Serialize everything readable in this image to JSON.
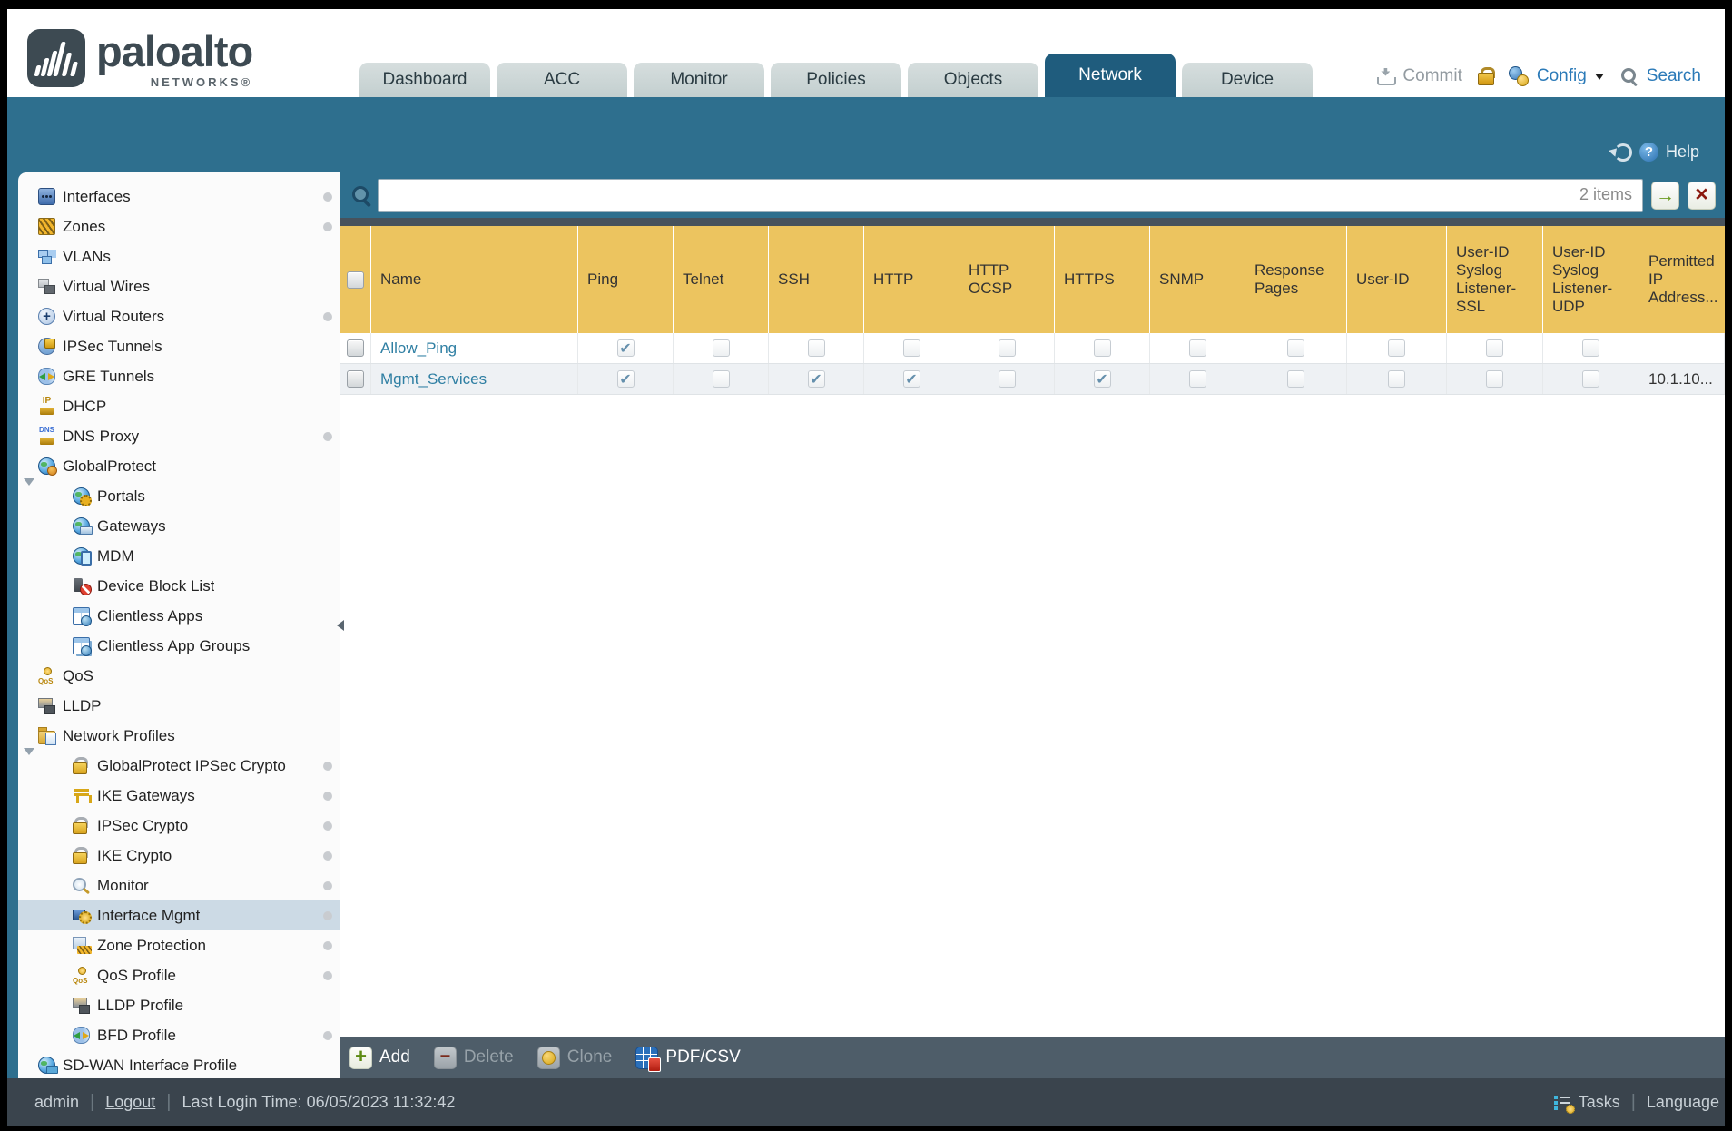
{
  "colors": {
    "band_blue": "#2e6f8e",
    "active_tab": "#1f5c7d",
    "table_header_yellow": "#ecc45f",
    "row_link": "#2f7fa3",
    "selected_item": "#ccdae5",
    "toolbar_bg": "#4e5d69",
    "footer_bg": "#3a444d"
  },
  "header": {
    "brand": "paloalto",
    "brand_sub": "NETWORKS®",
    "tabs": [
      {
        "label": "Dashboard"
      },
      {
        "label": "ACC"
      },
      {
        "label": "Monitor"
      },
      {
        "label": "Policies"
      },
      {
        "label": "Objects"
      },
      {
        "label": "Network",
        "active": true
      },
      {
        "label": "Device"
      }
    ],
    "commit_label": "Commit",
    "config_label": "Config",
    "search_label": "Search"
  },
  "band": {
    "help_label": "Help"
  },
  "sidebar": {
    "items": [
      {
        "label": "Interfaces",
        "level": 0,
        "icon": "interfaces",
        "dot": true
      },
      {
        "label": "Zones",
        "level": 0,
        "icon": "zones",
        "dot": true
      },
      {
        "label": "VLANs",
        "level": 0,
        "icon": "vlans"
      },
      {
        "label": "Virtual Wires",
        "level": 0,
        "icon": "virtual-wires"
      },
      {
        "label": "Virtual Routers",
        "level": 0,
        "icon": "virtual-routers",
        "dot": true
      },
      {
        "label": "IPSec Tunnels",
        "level": 0,
        "icon": "ipsec-tunnels"
      },
      {
        "label": "GRE Tunnels",
        "level": 0,
        "icon": "gre-tunnels"
      },
      {
        "label": "DHCP",
        "level": 0,
        "icon": "dhcp"
      },
      {
        "label": "DNS Proxy",
        "level": 0,
        "icon": "dns-proxy",
        "dot": true
      },
      {
        "label": "GlobalProtect",
        "level": 0,
        "icon": "globalprotect",
        "expander": true
      },
      {
        "label": "Portals",
        "level": 1,
        "icon": "portals"
      },
      {
        "label": "Gateways",
        "level": 1,
        "icon": "gateways"
      },
      {
        "label": "MDM",
        "level": 1,
        "icon": "mdm"
      },
      {
        "label": "Device Block List",
        "level": 1,
        "icon": "device-block-list"
      },
      {
        "label": "Clientless Apps",
        "level": 1,
        "icon": "clientless-apps"
      },
      {
        "label": "Clientless App Groups",
        "level": 1,
        "icon": "clientless-app-groups"
      },
      {
        "label": "QoS",
        "level": 0,
        "icon": "qos"
      },
      {
        "label": "LLDP",
        "level": 0,
        "icon": "lldp"
      },
      {
        "label": "Network Profiles",
        "level": 0,
        "icon": "network-profiles",
        "expander": true
      },
      {
        "label": "GlobalProtect IPSec Crypto",
        "level": 1,
        "icon": "lock",
        "dot": true
      },
      {
        "label": "IKE Gateways",
        "level": 1,
        "icon": "ike-gateways",
        "dot": true
      },
      {
        "label": "IPSec Crypto",
        "level": 1,
        "icon": "lock",
        "dot": true
      },
      {
        "label": "IKE Crypto",
        "level": 1,
        "icon": "lock",
        "dot": true
      },
      {
        "label": "Monitor",
        "level": 1,
        "icon": "monitor",
        "dot": true
      },
      {
        "label": "Interface Mgmt",
        "level": 1,
        "icon": "interface-mgmt",
        "selected": true,
        "dot": true
      },
      {
        "label": "Zone Protection",
        "level": 1,
        "icon": "zone-protection",
        "dot": true
      },
      {
        "label": "QoS Profile",
        "level": 1,
        "icon": "qos",
        "dot": true
      },
      {
        "label": "LLDP Profile",
        "level": 1,
        "icon": "lldp"
      },
      {
        "label": "BFD Profile",
        "level": 1,
        "icon": "bfd",
        "dot": true
      },
      {
        "label": "SD-WAN Interface Profile",
        "level": 0,
        "icon": "sd-wan"
      }
    ]
  },
  "content": {
    "filter": {
      "value": "",
      "count": "2 items"
    },
    "table": {
      "columns": [
        "Name",
        "Ping",
        "Telnet",
        "SSH",
        "HTTP",
        "HTTP OCSP",
        "HTTPS",
        "SNMP",
        "Response Pages",
        "User-ID",
        "User-ID Syslog Listener-SSL",
        "User-ID Syslog Listener-UDP",
        "Permitted IP Address..."
      ],
      "rows": [
        {
          "name": "Allow_Ping",
          "checks": [
            true,
            false,
            false,
            false,
            false,
            false,
            false,
            false,
            false,
            false,
            false
          ],
          "permitted_ip": ""
        },
        {
          "name": "Mgmt_Services",
          "checks": [
            true,
            false,
            true,
            true,
            false,
            true,
            false,
            false,
            false,
            false,
            false
          ],
          "permitted_ip": "10.1.10..."
        }
      ]
    },
    "toolbar": [
      {
        "label": "Add",
        "icon": "add",
        "enabled": true
      },
      {
        "label": "Delete",
        "icon": "delete",
        "enabled": false
      },
      {
        "label": "Clone",
        "icon": "clone",
        "enabled": false
      },
      {
        "label": "PDF/CSV",
        "icon": "pdf-csv",
        "enabled": true
      }
    ]
  },
  "footer": {
    "user": "admin",
    "logout": "Logout",
    "last_login": "Last Login Time: 06/05/2023 11:32:42",
    "tasks": "Tasks",
    "language": "Language"
  }
}
